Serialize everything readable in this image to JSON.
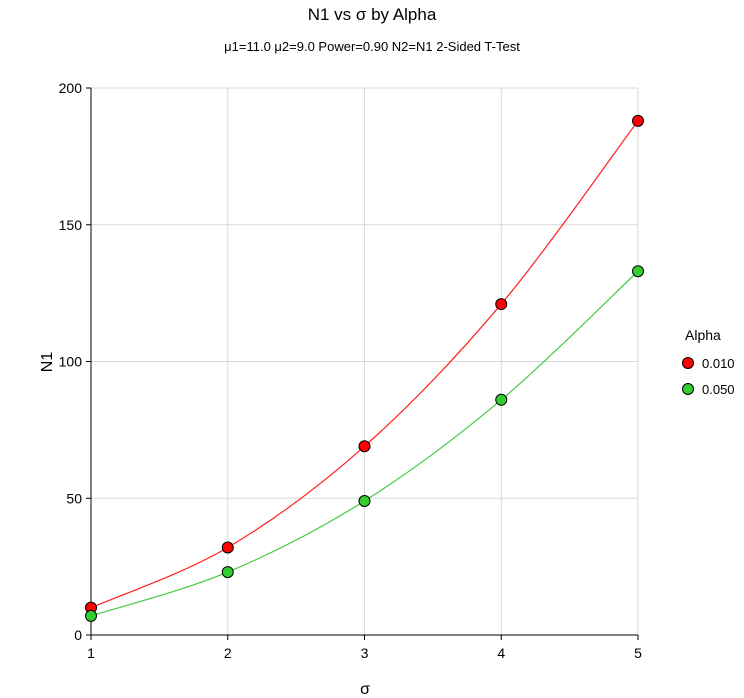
{
  "chart_data": {
    "type": "line",
    "title": "N1 vs σ by Alpha",
    "subtitle": "μ1=11.0 μ2=9.0 Power=0.90 N2=N1 2-Sided T-Test",
    "xlabel": "σ",
    "ylabel": "N1",
    "x": [
      1,
      2,
      3,
      4,
      5
    ],
    "xlim": [
      1,
      5
    ],
    "ylim": [
      0,
      200
    ],
    "xticks": [
      "1",
      "2",
      "3",
      "4",
      "5"
    ],
    "yticks": [
      "0",
      "50",
      "100",
      "150",
      "200"
    ],
    "grid": true,
    "legend": {
      "title": "Alpha",
      "position": "right"
    },
    "series": [
      {
        "name": "0.010",
        "values": [
          10,
          32,
          69,
          121,
          188
        ],
        "color": "#ff0000",
        "line_color": "#ff2020"
      },
      {
        "name": "0.050",
        "values": [
          7,
          23,
          49,
          86,
          133
        ],
        "color": "#33cc33",
        "line_color": "#44cc44"
      }
    ]
  }
}
